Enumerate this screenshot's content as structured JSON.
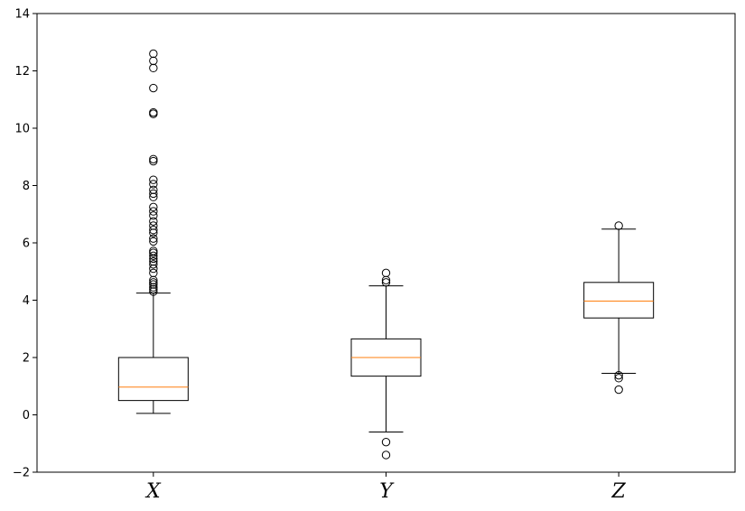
{
  "chart_data": {
    "type": "boxplot",
    "title": "",
    "xlabel": "",
    "ylabel": "",
    "ylim": [
      -2,
      14
    ],
    "yticks": [
      -2,
      0,
      2,
      4,
      6,
      8,
      10,
      12,
      14
    ],
    "grid": false,
    "categories": [
      "X",
      "Y",
      "Z"
    ],
    "boxes": [
      {
        "category": "X",
        "whisker_low": 0.05,
        "q1": 0.5,
        "median": 0.97,
        "q3": 2.0,
        "whisker_high": 4.25,
        "outliers": [
          4.3,
          4.38,
          4.45,
          4.55,
          4.62,
          4.7,
          4.95,
          5.1,
          5.25,
          5.35,
          5.45,
          5.55,
          5.65,
          5.72,
          6.05,
          6.15,
          6.35,
          6.45,
          6.6,
          6.75,
          6.95,
          7.1,
          7.25,
          7.6,
          7.72,
          7.85,
          8.05,
          8.2,
          8.85,
          8.92,
          10.5,
          10.55,
          11.4,
          12.1,
          12.35,
          12.6
        ]
      },
      {
        "category": "Y",
        "whisker_low": -0.6,
        "q1": 1.35,
        "median": 2.0,
        "q3": 2.65,
        "whisker_high": 4.5,
        "outliers": [
          -0.95,
          -1.4,
          4.62,
          4.7,
          4.95
        ]
      },
      {
        "category": "Z",
        "whisker_low": 1.45,
        "q1": 3.38,
        "median": 3.97,
        "q3": 4.62,
        "whisker_high": 6.48,
        "outliers": [
          1.38,
          1.28,
          0.88,
          6.6
        ]
      }
    ],
    "colors": {
      "box": "#000000",
      "median": "#ff7f0e",
      "frame": "#000000"
    }
  }
}
